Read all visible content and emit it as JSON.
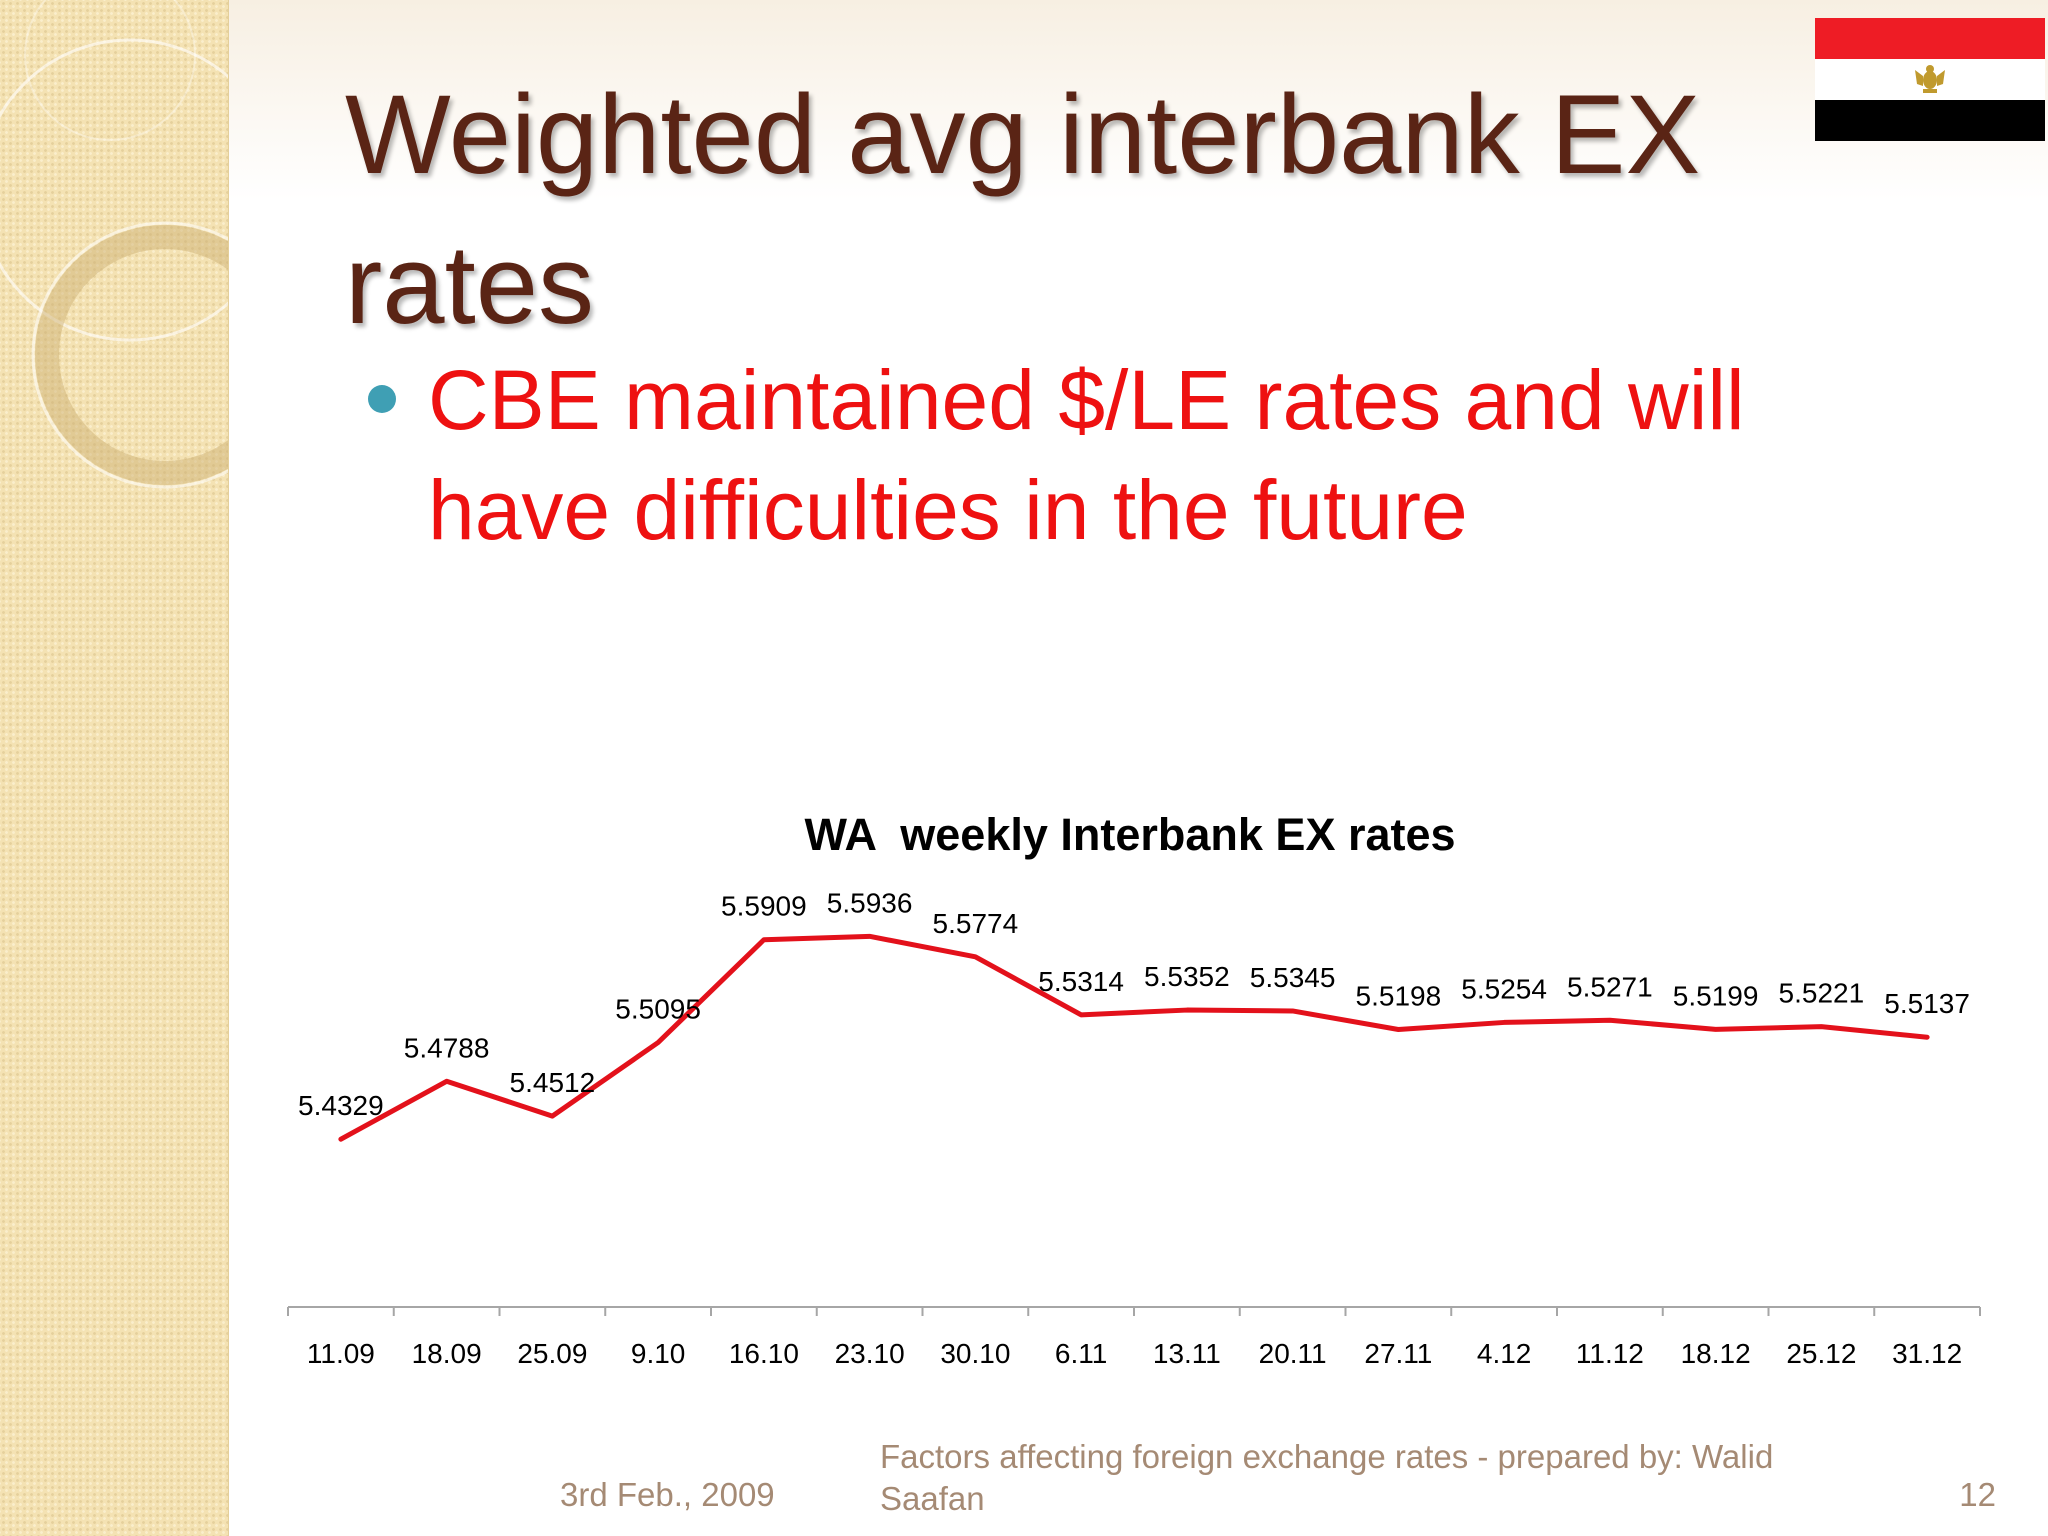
{
  "slide": {
    "title": "Weighted avg interbank EX rates",
    "bullets": [
      "CBE maintained $/LE rates and will have difficulties in the future"
    ]
  },
  "footer": {
    "date": "3rd Feb., 2009",
    "text": "Factors affecting foreign exchange rates - prepared by: Walid Saafan",
    "page_number": "12"
  },
  "colors": {
    "title": "#5a2415",
    "bullet_text": "#ee1111",
    "bullet_dot": "#3f9fb4",
    "line": "#e3111b",
    "footer": "#a58a74",
    "flag_red": "#ee1c25",
    "flag_white": "#ffffff",
    "flag_black": "#000000",
    "eagle": "#c09a2e"
  },
  "icons": {
    "flag": "egypt-flag-icon",
    "bullet": "bullet-dot-icon"
  },
  "chart_data": {
    "type": "line",
    "title": "WA  weekly Interbank EX rates",
    "xlabel": "",
    "ylabel": "",
    "categories": [
      "11.09",
      "18.09",
      "25.09",
      "9.10",
      "16.10",
      "23.10",
      "30.10",
      "6.11",
      "13.11",
      "20.11",
      "27.11",
      "4.12",
      "11.12",
      "18.12",
      "25.12",
      "31.12"
    ],
    "series": [
      {
        "values": [
          5.4329,
          5.4788,
          5.4512,
          5.5095,
          5.5909,
          5.5936,
          5.5774,
          5.5314,
          5.5352,
          5.5345,
          5.5198,
          5.5254,
          5.5271,
          5.5199,
          5.5221,
          5.5137
        ]
      }
    ],
    "data_labels": [
      "5.4329",
      "5.4788",
      "5.4512",
      "5.5095",
      "5.5909",
      "5.5936",
      "5.5774",
      "5.5314",
      "5.5352",
      "5.5345",
      "5.5198",
      "5.5254",
      "5.5271",
      "5.5199",
      "5.5221",
      "5.5137"
    ],
    "ylim": [
      5.3,
      5.62
    ],
    "grid": false,
    "legend": "none"
  }
}
